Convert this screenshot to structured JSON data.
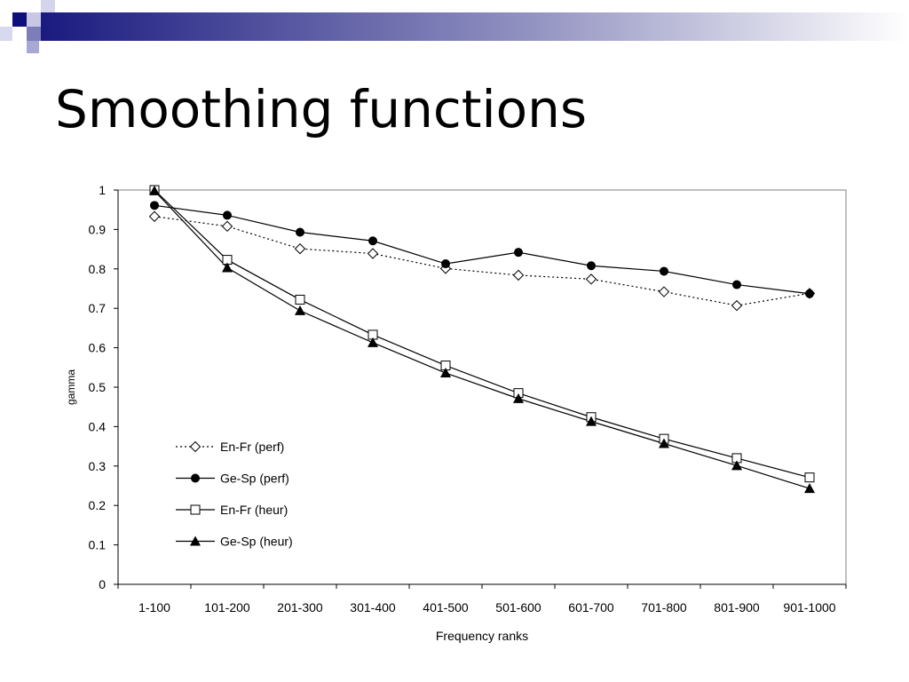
{
  "slide": {
    "title": "Smoothing functions"
  },
  "chart_data": {
    "type": "line",
    "title": "",
    "xlabel": "Frequency ranks",
    "ylabel": "gamma",
    "ylim": [
      0,
      1
    ],
    "yticks": [
      "0",
      "0.1",
      "0.2",
      "0.3",
      "0.4",
      "0.5",
      "0.6",
      "0.7",
      "0.8",
      "0.9",
      "1"
    ],
    "grid": false,
    "legend_position": "left",
    "categories": [
      "1-100",
      "101-200",
      "201-300",
      "301-400",
      "401-500",
      "501-600",
      "601-700",
      "701-800",
      "801-900",
      "901-1000"
    ],
    "series": [
      {
        "name": "En-Fr (perf)",
        "marker": "diamond-open",
        "line": "dotted",
        "values": [
          0.933,
          0.908,
          0.851,
          0.839,
          0.801,
          0.784,
          0.774,
          0.742,
          0.707,
          0.738
        ]
      },
      {
        "name": "Ge-Sp (perf)",
        "marker": "circle-filled",
        "line": "solid",
        "values": [
          0.961,
          0.936,
          0.893,
          0.871,
          0.813,
          0.842,
          0.808,
          0.794,
          0.76,
          0.737
        ]
      },
      {
        "name": "En-Fr (heur)",
        "marker": "square-open",
        "line": "solid",
        "values": [
          1.0,
          0.823,
          0.722,
          0.633,
          0.555,
          0.485,
          0.424,
          0.369,
          0.32,
          0.271
        ]
      },
      {
        "name": "Ge-Sp (heur)",
        "marker": "triangle-filled",
        "line": "solid",
        "values": [
          0.998,
          0.803,
          0.694,
          0.613,
          0.536,
          0.471,
          0.413,
          0.357,
          0.301,
          0.243
        ]
      }
    ]
  }
}
